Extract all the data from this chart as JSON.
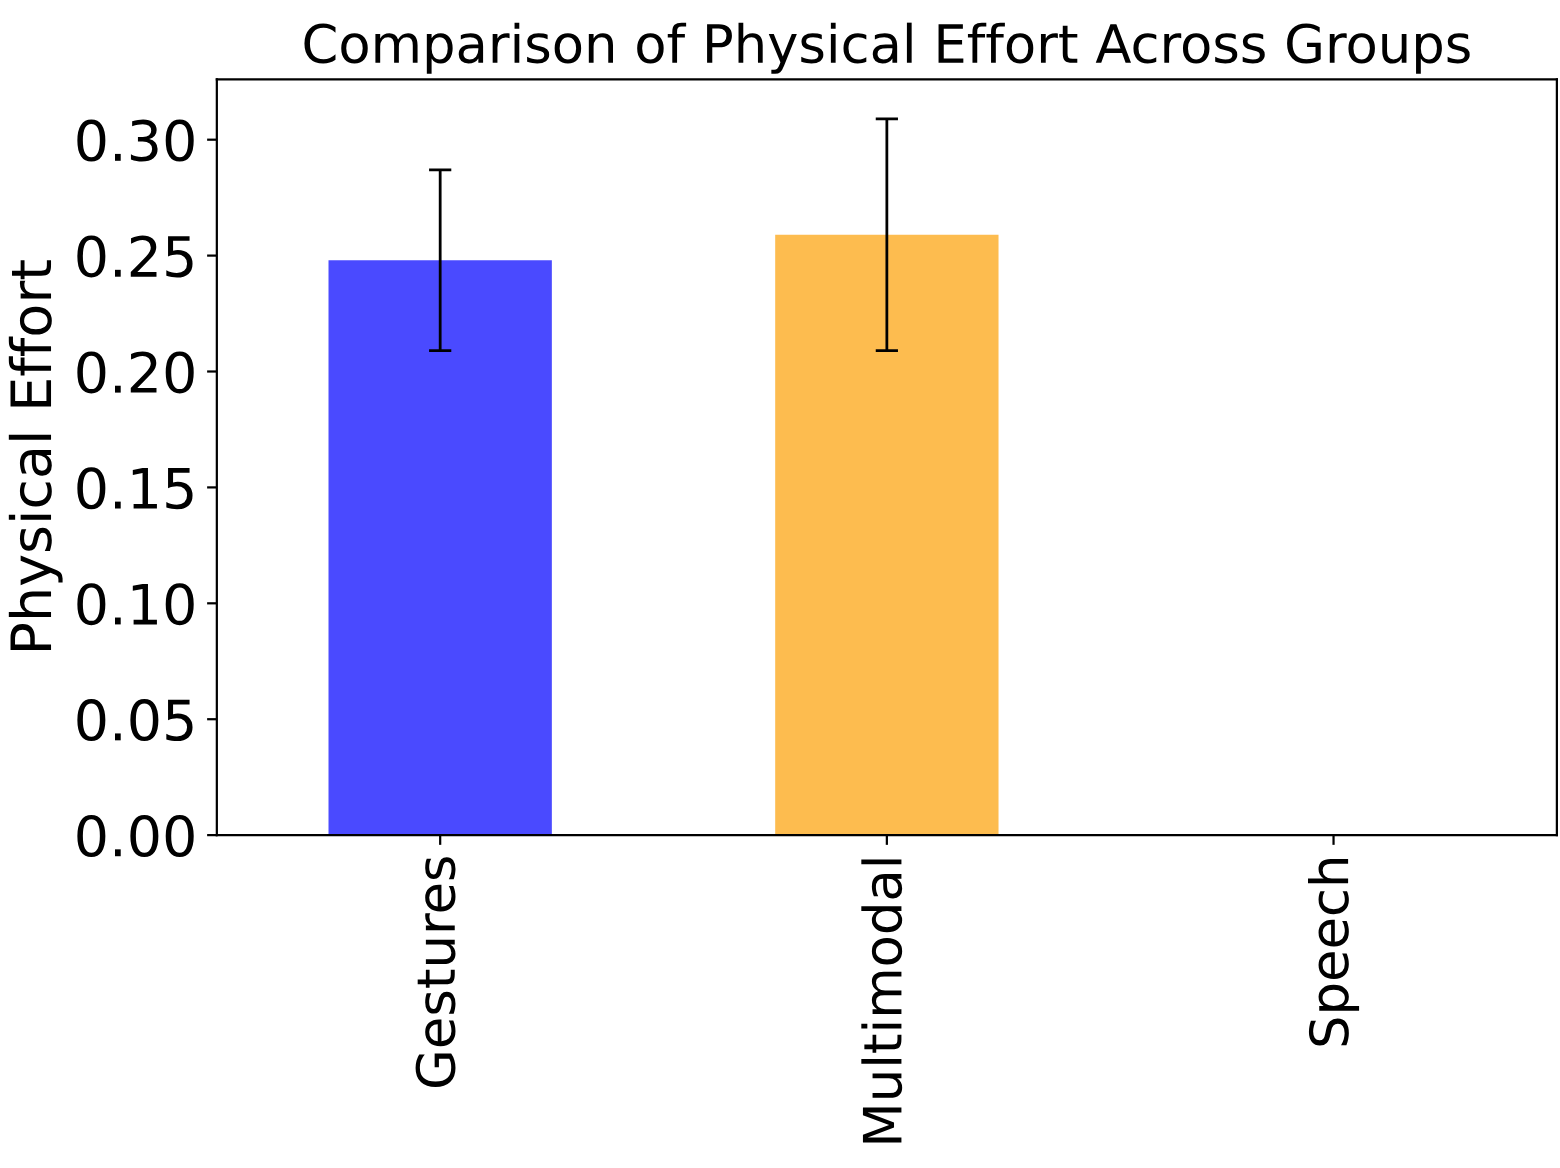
{
  "chart_data": {
    "type": "bar",
    "title": "Comparison of Physical Effort Across Groups",
    "ylabel": "Physical Effort",
    "categories": [
      "Gestures",
      "Multimodal",
      "Speech"
    ],
    "values": [
      0.248,
      0.259,
      0
    ],
    "errors": [
      0.039,
      0.05,
      null
    ],
    "colors": [
      "#4a4aff",
      "#fdbc4f",
      "#888888"
    ],
    "ylim": [
      0,
      0.326
    ],
    "yticks": [
      {
        "value": 0,
        "label": "0.00"
      },
      {
        "value": 0.05,
        "label": "0.05"
      },
      {
        "value": 0.1,
        "label": "0.10"
      },
      {
        "value": 0.15,
        "label": "0.15"
      },
      {
        "value": 0.2,
        "label": "0.20"
      },
      {
        "value": 0.25,
        "label": "0.25"
      },
      {
        "value": 0.3,
        "label": "0.30"
      }
    ],
    "grid": false,
    "legend": false
  }
}
